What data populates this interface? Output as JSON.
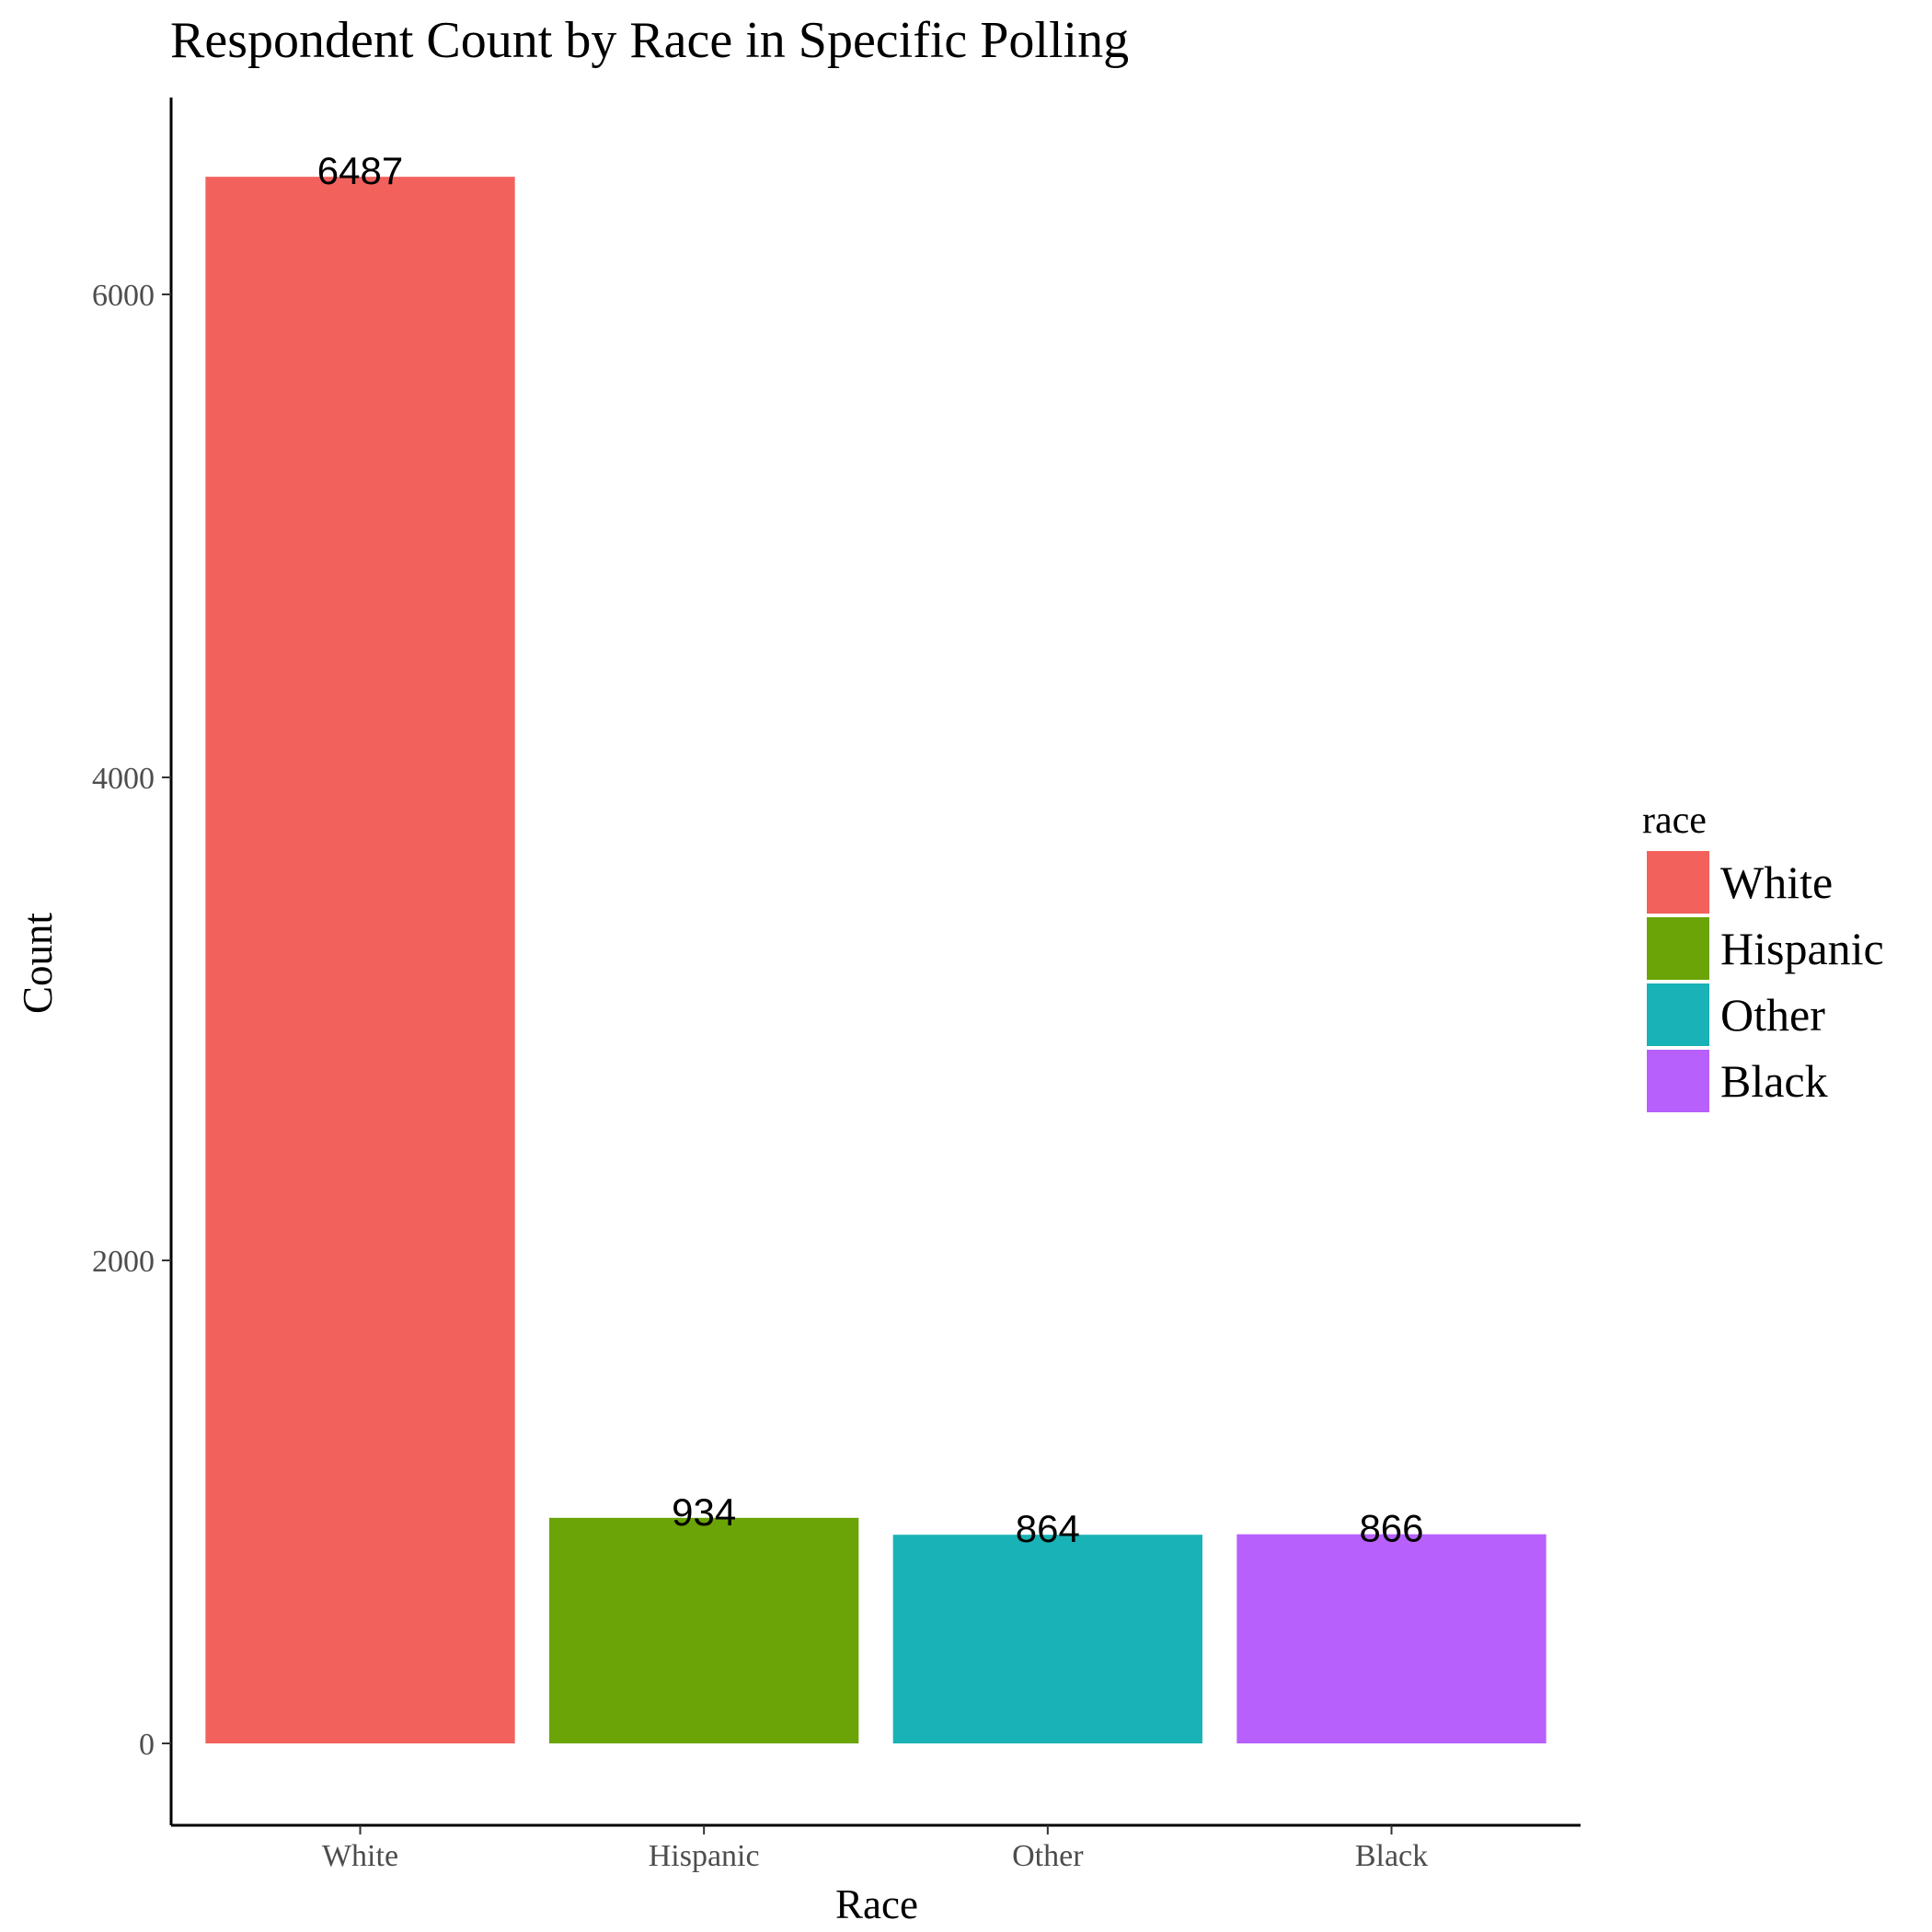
{
  "chart_data": {
    "type": "bar",
    "title": "Respondent Count by Race in Specific Polling",
    "xlabel": "Race",
    "ylabel": "Count",
    "categories": [
      "White",
      "Hispanic",
      "Other",
      "Black"
    ],
    "values": [
      6487,
      934,
      864,
      866
    ],
    "data_labels": [
      "6487",
      "934",
      "864",
      "866"
    ],
    "colors": [
      "#F2615C",
      "#6BA406",
      "#19B2B6",
      "#B760FC"
    ],
    "yticks": [
      0,
      2000,
      4000,
      6000
    ],
    "ytick_labels": [
      "0",
      "2000",
      "4000",
      "6000"
    ],
    "ylim": [
      -320,
      6810
    ],
    "grid": false,
    "legend": {
      "title": "race",
      "placement": "right",
      "items": [
        "White",
        "Hispanic",
        "Other",
        "Black"
      ]
    }
  }
}
